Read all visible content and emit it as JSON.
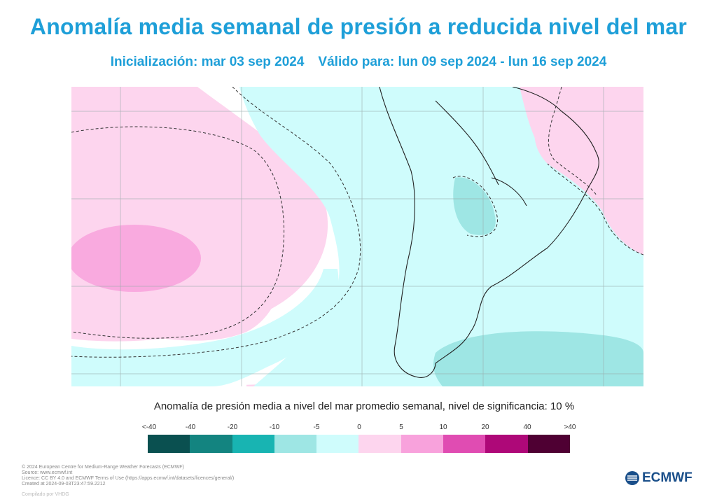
{
  "header": {
    "title": "Anomalía media semanal de presión a reducida nivel del mar",
    "init": "Inicialización: mar 03 sep 2024",
    "valid": "Válido para: lun 09 sep 2024 - lun 16 sep 2024"
  },
  "caption": "Anomalía de presión media a nivel del mar promedio semanal, nivel de significancia: 10 %",
  "colorbar": {
    "labels": [
      "<-40",
      "-40",
      "-20",
      "-10",
      "-5",
      "0",
      "5",
      "10",
      "20",
      "40",
      ">40"
    ],
    "colors": [
      "#0a5050",
      "#138480",
      "#18b4b2",
      "#9ee6e4",
      "#cffcfc",
      "#fdd5ee",
      "#f8a2dc",
      "#e04cb2",
      "#ae0878",
      "#4f0033"
    ]
  },
  "footer": {
    "lines": [
      "© 2024 European Centre for Medium-Range Weather Forecasts (ECMWF)",
      "Source: www.ecmwf.int",
      "Licence: CC BY 4.0 and ECMWF Terms of Use (https://apps.ecmwf.int/datasets/licences/general/)",
      "Created at 2024-09-03T23:47:59.2212"
    ],
    "compiled": "Compilado por VHDG"
  },
  "logo": {
    "text": "ECMWF",
    "icon": "ecmwf-logo-icon"
  }
}
